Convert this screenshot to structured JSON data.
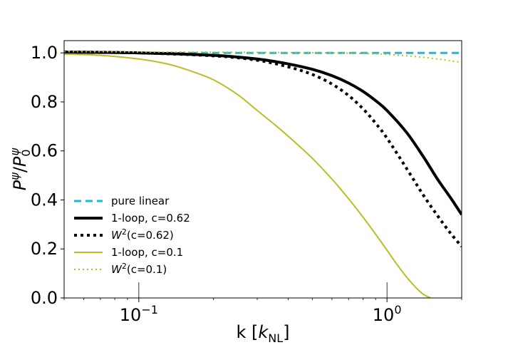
{
  "chart_data": {
    "type": "line",
    "xscale": "log",
    "xlim": [
      0.05,
      2.0
    ],
    "ylim": [
      0.0,
      1.05
    ],
    "xlabel": {
      "main": "k [",
      "sym": "k",
      "sub": "NL",
      "close": "]"
    },
    "ylabel": {
      "base1": "P",
      "sup1": "ψ",
      "slash": "/",
      "base2": "P",
      "sub2": "0",
      "sup2": "ψ"
    },
    "yticks": [
      {
        "value": 0.0,
        "label": "0.0"
      },
      {
        "value": 0.2,
        "label": "0.2"
      },
      {
        "value": 0.4,
        "label": "0.4"
      },
      {
        "value": 0.6,
        "label": "0.6"
      },
      {
        "value": 0.8,
        "label": "0.8"
      },
      {
        "value": 1.0,
        "label": "1.0"
      }
    ],
    "xticks": [
      {
        "value": 0.1,
        "base": "10",
        "exp": "−1"
      },
      {
        "value": 1.0,
        "base": "10",
        "exp": "0"
      }
    ],
    "legend_position": "lower-left",
    "series": [
      {
        "name": "pure linear",
        "legend": {
          "text": "pure linear"
        },
        "color": "#17becf",
        "style": "dashed",
        "weight": "medium",
        "x": [
          0.05,
          2.0
        ],
        "y": [
          1.0,
          1.0
        ]
      },
      {
        "name": "1-loop, c=0.62",
        "legend": {
          "text": "1-loop, c=0.62"
        },
        "color": "#000000",
        "style": "solid",
        "weight": "thick",
        "x": [
          0.05,
          0.1,
          0.2,
          0.3,
          0.4,
          0.5,
          0.6,
          0.7,
          0.8,
          0.9,
          1.0,
          1.2,
          1.4,
          1.6,
          1.8,
          2.0
        ],
        "y": [
          1.003,
          1.0,
          0.99,
          0.975,
          0.955,
          0.933,
          0.907,
          0.877,
          0.843,
          0.805,
          0.765,
          0.675,
          0.577,
          0.484,
          0.41,
          0.34
        ]
      },
      {
        "name": "W²(c=0.62)",
        "legend": {
          "base": "W",
          "sup": "2",
          "rest": "(c=0.62)"
        },
        "color": "#000000",
        "style": "dotted",
        "weight": "thick",
        "x": [
          0.05,
          0.1,
          0.2,
          0.3,
          0.4,
          0.5,
          0.6,
          0.7,
          0.8,
          0.9,
          1.0,
          1.2,
          1.4,
          1.6,
          1.8,
          2.0
        ],
        "y": [
          1.004,
          1.0,
          0.988,
          0.97,
          0.943,
          0.912,
          0.873,
          0.826,
          0.772,
          0.713,
          0.652,
          0.528,
          0.42,
          0.335,
          0.265,
          0.21
        ]
      },
      {
        "name": "1-loop, c=0.1",
        "legend": {
          "text": "1-loop, c=0.1"
        },
        "color": "#bcbd22",
        "style": "solid",
        "weight": "thin",
        "x": [
          0.05,
          0.07,
          0.1,
          0.13,
          0.16,
          0.2,
          0.25,
          0.3,
          0.35,
          0.4,
          0.5,
          0.6,
          0.7,
          0.8,
          0.9,
          1.0,
          1.1,
          1.2,
          1.3,
          1.4,
          1.5
        ],
        "y": [
          0.995,
          0.99,
          0.975,
          0.955,
          0.928,
          0.89,
          0.83,
          0.765,
          0.71,
          0.66,
          0.57,
          0.485,
          0.405,
          0.33,
          0.26,
          0.195,
          0.135,
          0.085,
          0.045,
          0.015,
          0.0
        ]
      },
      {
        "name": "W²(c=0.1)",
        "legend": {
          "base": "W",
          "sup": "2",
          "rest": "(c=0.1)"
        },
        "color": "#bcbd22",
        "style": "dotted",
        "weight": "thin",
        "x": [
          0.05,
          0.1,
          0.3,
          0.6,
          0.9,
          1.0,
          1.2,
          1.4,
          1.6,
          1.8,
          2.0
        ],
        "y": [
          1.005,
          1.004,
          1.002,
          1.0,
          0.996,
          0.994,
          0.988,
          0.982,
          0.975,
          0.968,
          0.961
        ]
      }
    ]
  }
}
